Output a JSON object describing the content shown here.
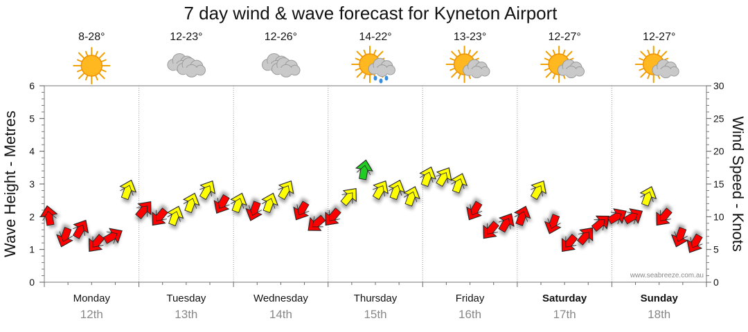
{
  "chart_data": {
    "type": "line",
    "title": "7 day wind & wave forecast for Kyneton Airport",
    "ylabel_left": "Wave Height - Metres",
    "ylabel_right": "Wind Speed - Knots",
    "ylim_left": [
      0,
      6
    ],
    "ylim_right": [
      0,
      30
    ],
    "left_ticks": [
      "0",
      "1",
      "2",
      "3",
      "4",
      "5",
      "6"
    ],
    "right_ticks": [
      "0",
      "5",
      "10",
      "15",
      "20",
      "25",
      "30"
    ],
    "grid": true,
    "watermark": "www.seabreeze.com.au",
    "days": [
      {
        "name": "Monday",
        "date": "12th",
        "temp": "8-28°",
        "icon": "sunny-icon",
        "bold": false
      },
      {
        "name": "Tuesday",
        "date": "13th",
        "temp": "12-23°",
        "icon": "cloudy-icon",
        "bold": false
      },
      {
        "name": "Wednesday",
        "date": "14th",
        "temp": "12-26°",
        "icon": "cloudy-icon",
        "bold": false
      },
      {
        "name": "Thursday",
        "date": "15th",
        "temp": "14-22°",
        "icon": "sun-cloud-rain-icon",
        "bold": false
      },
      {
        "name": "Friday",
        "date": "16th",
        "temp": "13-23°",
        "icon": "partly-cloudy-icon",
        "bold": false
      },
      {
        "name": "Saturday",
        "date": "17th",
        "temp": "12-27°",
        "icon": "partly-cloudy-icon",
        "bold": true
      },
      {
        "name": "Sunday",
        "date": "18th",
        "temp": "12-27°",
        "icon": "partly-cloudy-icon",
        "bold": true
      }
    ],
    "wind_series": {
      "name": "Wind Speed",
      "unit": "knots",
      "x_days": [
        0.0,
        0.17,
        0.33,
        0.5,
        0.67,
        0.83,
        1.0,
        1.17,
        1.33,
        1.5,
        1.67,
        1.83,
        2.0,
        2.17,
        2.33,
        2.5,
        2.67,
        2.83,
        3.0,
        3.17,
        3.33,
        3.5,
        3.67,
        3.83,
        4.0,
        4.17,
        4.33,
        4.5,
        4.67,
        4.83,
        5.0,
        5.17,
        5.33,
        5.5,
        5.67,
        5.83,
        6.0,
        6.17,
        6.33,
        6.5,
        6.67,
        6.83
      ],
      "speeds": [
        10,
        7,
        8,
        6,
        7,
        14,
        11,
        10,
        10,
        12,
        14,
        12,
        12,
        11,
        12,
        14,
        11,
        9,
        10,
        13,
        17,
        14,
        14,
        13,
        16,
        16,
        15,
        11,
        8,
        9,
        10,
        14,
        9,
        6,
        7,
        9,
        10,
        10,
        13,
        10,
        7,
        6
      ],
      "colors": [
        "red",
        "red",
        "red",
        "red",
        "red",
        "yellow",
        "red",
        "red",
        "yellow",
        "yellow",
        "yellow",
        "red",
        "yellow",
        "red",
        "yellow",
        "yellow",
        "red",
        "red",
        "red",
        "yellow",
        "green",
        "yellow",
        "yellow",
        "yellow",
        "yellow",
        "yellow",
        "yellow",
        "red",
        "red",
        "red",
        "red",
        "yellow",
        "red",
        "red",
        "red",
        "red",
        "red",
        "red",
        "yellow",
        "red",
        "red",
        "red"
      ],
      "directions_deg": [
        350,
        200,
        30,
        220,
        60,
        20,
        40,
        220,
        20,
        20,
        30,
        210,
        20,
        200,
        20,
        30,
        210,
        230,
        220,
        40,
        10,
        30,
        20,
        20,
        20,
        30,
        20,
        210,
        220,
        30,
        20,
        30,
        200,
        220,
        40,
        50,
        60,
        60,
        20,
        220,
        200,
        210
      ]
    }
  }
}
